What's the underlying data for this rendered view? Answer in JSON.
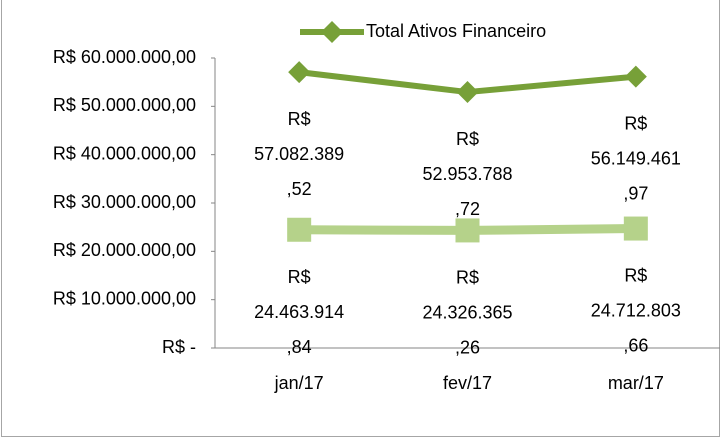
{
  "chart_data": {
    "type": "line",
    "categories": [
      "jan/17",
      "fev/17",
      "mar/17"
    ],
    "series": [
      {
        "name": "Total Ativos Financeiro",
        "color": "#77a038",
        "marker": "diamond",
        "values": [
          57082389.52,
          52953788.72,
          56149461.97
        ],
        "value_labels": [
          "R$ 57.082.389,52",
          "R$ 52.953.788,72",
          "R$ 56.149.461,97"
        ]
      },
      {
        "color": "#b5d28a",
        "marker": "square",
        "values": [
          24463914.84,
          24326365.26,
          24712803.66
        ],
        "value_labels": [
          "R$ 24.463.914,84",
          "R$ 24.326.365,26",
          "R$ 24.712.803,66"
        ]
      }
    ],
    "ylim": [
      0,
      60000000
    ],
    "yticks": [
      {
        "value": 0,
        "label": "R$ -"
      },
      {
        "value": 10000000,
        "label": "R$ 10.000.000,00"
      },
      {
        "value": 20000000,
        "label": "R$ 20.000.000,00"
      },
      {
        "value": 30000000,
        "label": "R$ 30.000.000,00"
      },
      {
        "value": 40000000,
        "label": "R$ 40.000.000,00"
      },
      {
        "value": 50000000,
        "label": "R$ 50.000.000,00"
      },
      {
        "value": 60000000,
        "label": "R$ 60.000.000,00"
      }
    ],
    "grid": false,
    "legend": "top"
  }
}
